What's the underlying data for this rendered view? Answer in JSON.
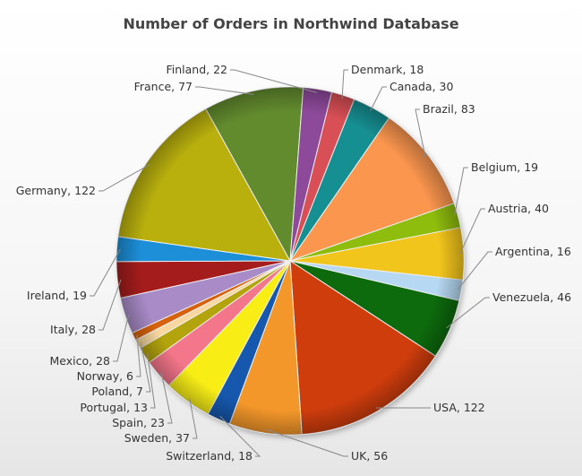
{
  "chart_data": {
    "type": "pie",
    "title": "Number of Orders in Northwind Database",
    "slices": [
      {
        "label": "Argentina",
        "value": 16,
        "color": "#b6d8f2"
      },
      {
        "label": "Venezuela",
        "value": 46,
        "color": "#0c6b0c"
      },
      {
        "label": "USA",
        "value": 122,
        "color": "#d03d0c"
      },
      {
        "label": "UK",
        "value": 56,
        "color": "#f4972c"
      },
      {
        "label": "Switzerland",
        "value": 18,
        "color": "#1559ad"
      },
      {
        "label": "Sweden",
        "value": 37,
        "color": "#f8ee12"
      },
      {
        "label": "Spain",
        "value": 23,
        "color": "#f4768a"
      },
      {
        "label": "Portugal",
        "value": 13,
        "color": "#b3a30c"
      },
      {
        "label": "Poland",
        "value": 7,
        "color": "#f7d79f"
      },
      {
        "label": "Norway",
        "value": 6,
        "color": "#d6620f"
      },
      {
        "label": "Mexico",
        "value": 28,
        "color": "#a88bc7"
      },
      {
        "label": "Italy",
        "value": 28,
        "color": "#a41b1b"
      },
      {
        "label": "Ireland",
        "value": 19,
        "color": "#1c8fd8"
      },
      {
        "label": "Germany",
        "value": 122,
        "color": "#b9b00c"
      },
      {
        "label": "France",
        "value": 77,
        "color": "#628b2f"
      },
      {
        "label": "Finland",
        "value": 22,
        "color": "#8d4a9a"
      },
      {
        "label": "Denmark",
        "value": 18,
        "color": "#d85055"
      },
      {
        "label": "Canada",
        "value": 30,
        "color": "#128f92"
      },
      {
        "label": "Brazil",
        "value": 83,
        "color": "#fb9650"
      },
      {
        "label": "Belgium",
        "value": 19,
        "color": "#8fbd0c"
      },
      {
        "label": "Austria",
        "value": 40,
        "color": "#f2c51c"
      }
    ],
    "data_labels": [
      "Argentina, 16",
      "Venezuela, 46",
      "USA, 122",
      "UK, 56",
      "Switzerland, 18",
      "Sweden, 37",
      "Spain, 23",
      "Portugal, 13",
      "Poland, 7",
      "Norway, 6",
      "Mexico, 28",
      "Italy, 28",
      "Ireland, 19",
      "Germany, 122",
      "France, 77",
      "Finland, 22",
      "Denmark, 18",
      "Canada, 30",
      "Brazil, 83",
      "Belgium, 19",
      "Austria, 40"
    ]
  }
}
